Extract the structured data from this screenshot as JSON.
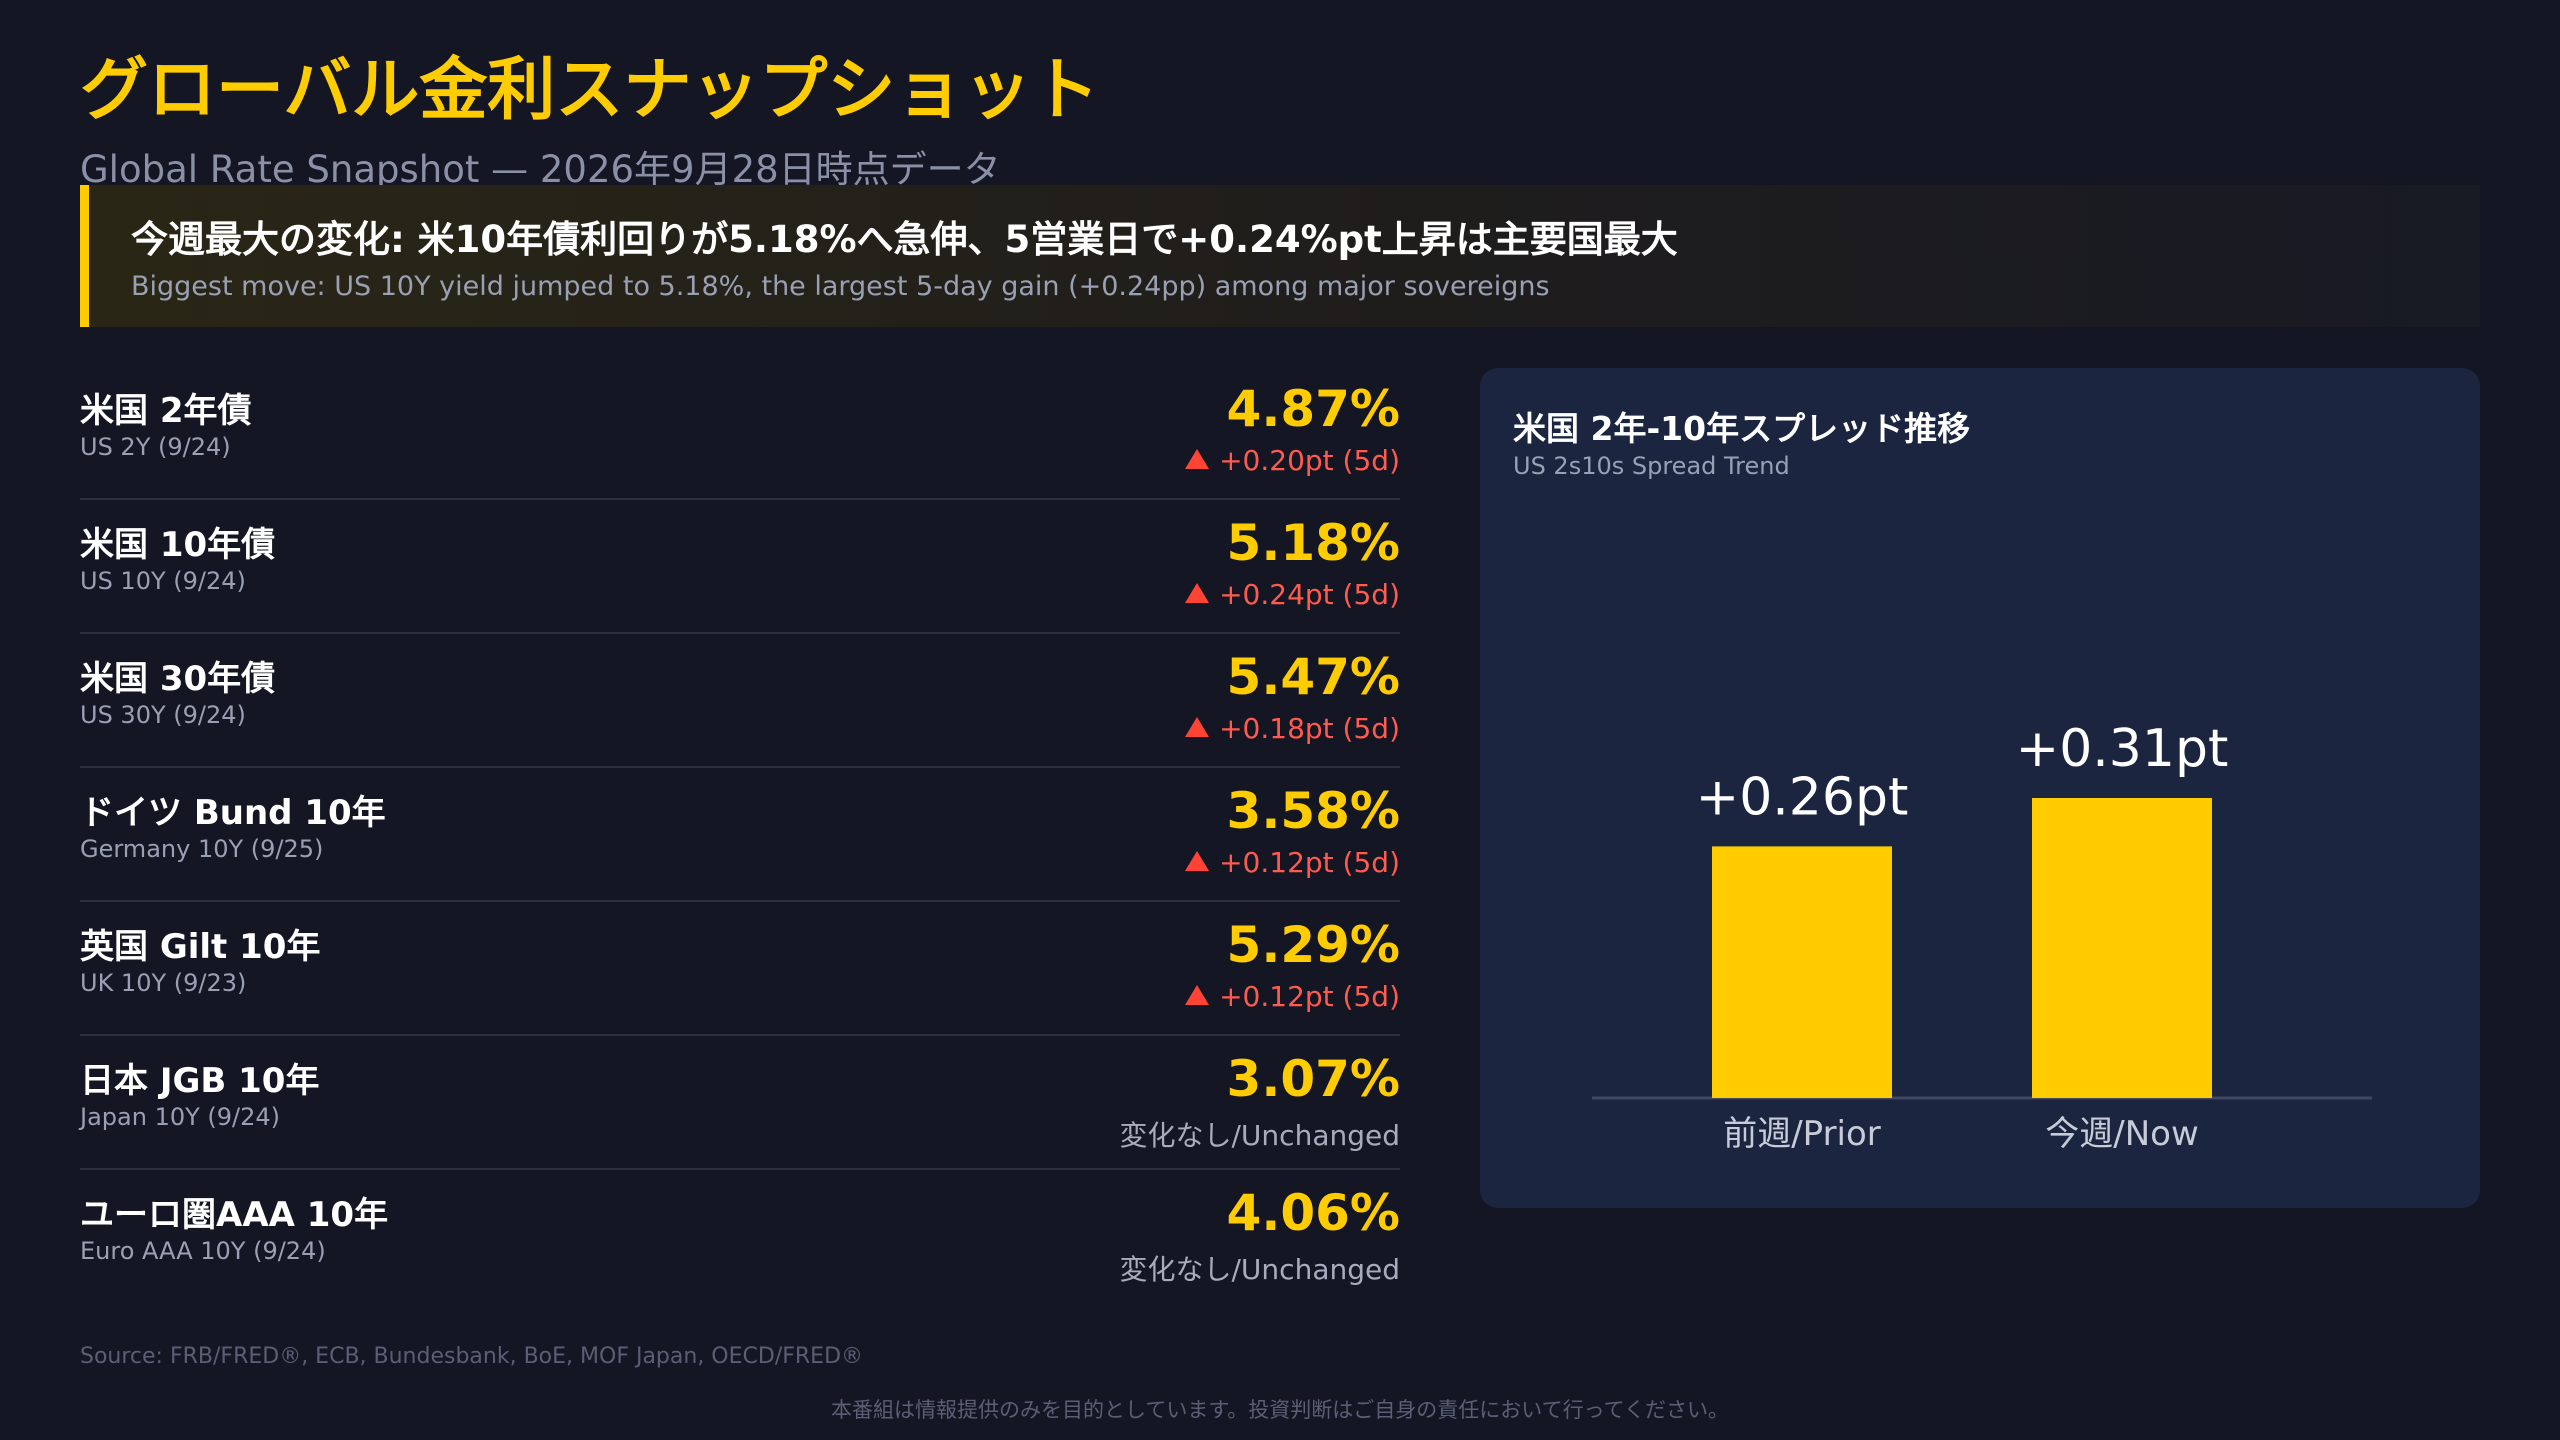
{
  "header": {
    "title": "グローバル金利スナップショット",
    "subtitle": "Global Rate Snapshot — 2026年9月28日時点データ"
  },
  "callout": {
    "headline": "今週最大の変化: 米10年債利回りが5.18%へ急伸、5営業日で+0.24%pt上昇は主要国最大",
    "subtext": "Biggest move: US 10Y yield jumped to 5.18%, the largest 5-day gain (+0.24pp) among major sovereigns"
  },
  "rates": [
    {
      "name": "米国 2年債",
      "sub": "US 2Y (9/24)",
      "value": "4.87%",
      "change": "+0.20pt (5d)",
      "direction": "up"
    },
    {
      "name": "米国 10年債",
      "sub": "US 10Y (9/24)",
      "value": "5.18%",
      "change": "+0.24pt (5d)",
      "direction": "up"
    },
    {
      "name": "米国 30年債",
      "sub": "US 30Y (9/24)",
      "value": "5.47%",
      "change": "+0.18pt (5d)",
      "direction": "up"
    },
    {
      "name": "ドイツ Bund 10年",
      "sub": "Germany 10Y (9/25)",
      "value": "3.58%",
      "change": "+0.12pt (5d)",
      "direction": "up"
    },
    {
      "name": "英国 Gilt 10年",
      "sub": "UK 10Y (9/23)",
      "value": "5.29%",
      "change": "+0.12pt (5d)",
      "direction": "up"
    },
    {
      "name": "日本 JGB 10年",
      "sub": "Japan 10Y (9/24)",
      "value": "3.07%",
      "change": "変化なし/Unchanged",
      "direction": "flat"
    },
    {
      "name": "ユーロ圏AAA 10年",
      "sub": "Euro AAA 10Y (9/24)",
      "value": "4.06%",
      "change": "変化なし/Unchanged",
      "direction": "flat"
    }
  ],
  "chart_data": {
    "type": "bar",
    "title": "米国 2年-10年スプレッド推移",
    "subtitle": "US 2s10s Spread Trend",
    "categories": [
      "前週/Prior",
      "今週/Now"
    ],
    "values": [
      0.26,
      0.31
    ],
    "value_labels": [
      "+0.26pt",
      "+0.31pt"
    ],
    "ylim": [
      0,
      0.31
    ],
    "grid": false,
    "bar_color": "#ffcc00",
    "axis_color": "#3e4862"
  },
  "footer": {
    "source": "Source: FRB/FRED®, ECB, Bundesbank, BoE, MOF Japan, OECD/FRED®",
    "disclaimer": "本番組は情報提供のみを目的としています。投資判断はご自身の責任において行ってください。"
  },
  "colors": {
    "background": "#141623",
    "accent": "#ffcc00",
    "up": "#ff5a4e",
    "flat": "#a7acbd",
    "card": "#1b2540"
  }
}
